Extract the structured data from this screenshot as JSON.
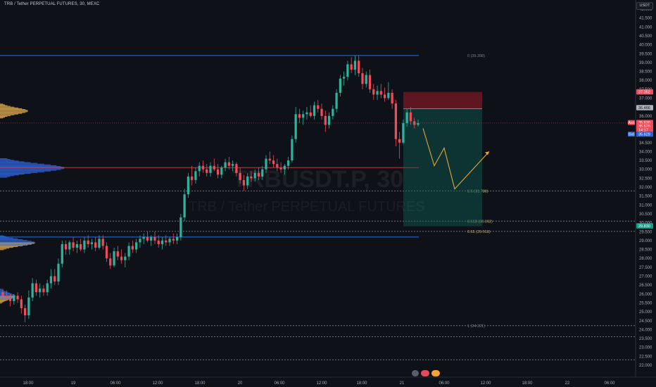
{
  "header": {
    "symbol_title": "TRB / Tether PERPETUAL FUTURES, 30, MEXC",
    "currency": "USDT"
  },
  "watermark": {
    "symbol": "TRBUSDT.P, 30",
    "name": "TRB / Tether PERPETUAL FUTURES"
  },
  "colors": {
    "bull": "#2db39c",
    "bear": "#ef4b5b",
    "fib_line": "#2b6fdc",
    "fib_mid_line": "#d8404a",
    "projection": "#e8a536",
    "target_zone": "#0e5d55",
    "stop_zone": "#7a1a26",
    "volume_profile_up": "#d6a54a",
    "volume_profile_down": "#2b63d6"
  },
  "chart_data": {
    "type": "candlestick",
    "title": "TRB / Tether PERPETUAL FUTURES, 30, MEXC",
    "y_axis": {
      "unit": "USDT",
      "range": [
        22.0,
        42.0
      ],
      "ticks": [
        "42.000",
        "41.500",
        "41.000",
        "40.500",
        "40.000",
        "39.500",
        "39.000",
        "38.500",
        "38.000",
        "37.500",
        "37.000",
        "36.500",
        "36.000",
        "35.500",
        "35.000",
        "34.500",
        "34.000",
        "33.500",
        "33.000",
        "32.500",
        "32.000",
        "31.500",
        "31.000",
        "30.500",
        "30.000",
        "29.500",
        "29.000",
        "28.500",
        "28.000",
        "27.500",
        "27.000",
        "26.500",
        "26.000",
        "25.500",
        "25.000",
        "24.500",
        "24.000",
        "23.500",
        "23.000",
        "22.500",
        "22.000"
      ]
    },
    "x_axis": {
      "ticks": [
        "18:00",
        "19",
        "06:00",
        "12:00",
        "18:00",
        "20",
        "06:00",
        "12:00",
        "18:00",
        "21",
        "06:00",
        "12:00",
        "18:00",
        "22",
        "06:00"
      ]
    },
    "candles": [
      {
        "o": 26.1,
        "h": 26.3,
        "l": 25.7,
        "c": 25.9
      },
      {
        "o": 25.9,
        "h": 26.2,
        "l": 25.6,
        "c": 25.8
      },
      {
        "o": 25.8,
        "h": 26.0,
        "l": 25.3,
        "c": 25.6
      },
      {
        "o": 25.6,
        "h": 26.0,
        "l": 25.4,
        "c": 25.9
      },
      {
        "o": 25.9,
        "h": 26.1,
        "l": 25.5,
        "c": 25.7
      },
      {
        "o": 25.7,
        "h": 25.9,
        "l": 24.9,
        "c": 25.2
      },
      {
        "o": 25.2,
        "h": 25.4,
        "l": 24.4,
        "c": 24.8
      },
      {
        "o": 24.8,
        "h": 26.2,
        "l": 24.6,
        "c": 25.8
      },
      {
        "o": 25.8,
        "h": 26.9,
        "l": 25.6,
        "c": 26.6
      },
      {
        "o": 26.6,
        "h": 26.8,
        "l": 25.9,
        "c": 26.1
      },
      {
        "o": 26.1,
        "h": 26.6,
        "l": 25.8,
        "c": 26.3
      },
      {
        "o": 26.3,
        "h": 26.5,
        "l": 25.9,
        "c": 26.1
      },
      {
        "o": 26.1,
        "h": 26.8,
        "l": 25.9,
        "c": 26.6
      },
      {
        "o": 26.6,
        "h": 27.4,
        "l": 26.3,
        "c": 27.0
      },
      {
        "o": 27.0,
        "h": 27.4,
        "l": 26.5,
        "c": 26.7
      },
      {
        "o": 26.7,
        "h": 28.0,
        "l": 26.5,
        "c": 27.7
      },
      {
        "o": 27.7,
        "h": 29.0,
        "l": 27.5,
        "c": 28.8
      },
      {
        "o": 28.8,
        "h": 29.0,
        "l": 28.2,
        "c": 28.5
      },
      {
        "o": 28.5,
        "h": 29.0,
        "l": 28.2,
        "c": 28.9
      },
      {
        "o": 28.9,
        "h": 29.2,
        "l": 28.4,
        "c": 28.6
      },
      {
        "o": 28.6,
        "h": 29.0,
        "l": 28.3,
        "c": 28.8
      },
      {
        "o": 28.8,
        "h": 29.1,
        "l": 28.4,
        "c": 28.5
      },
      {
        "o": 28.5,
        "h": 29.2,
        "l": 28.3,
        "c": 29.0
      },
      {
        "o": 29.0,
        "h": 29.3,
        "l": 28.6,
        "c": 28.8
      },
      {
        "o": 28.8,
        "h": 29.1,
        "l": 28.5,
        "c": 28.9
      },
      {
        "o": 28.9,
        "h": 29.2,
        "l": 28.4,
        "c": 28.6
      },
      {
        "o": 28.6,
        "h": 29.3,
        "l": 28.5,
        "c": 29.1
      },
      {
        "o": 29.1,
        "h": 29.3,
        "l": 28.5,
        "c": 28.7
      },
      {
        "o": 28.7,
        "h": 28.9,
        "l": 27.8,
        "c": 28.0
      },
      {
        "o": 28.0,
        "h": 28.3,
        "l": 27.4,
        "c": 27.6
      },
      {
        "o": 27.6,
        "h": 28.6,
        "l": 27.5,
        "c": 28.4
      },
      {
        "o": 28.4,
        "h": 28.7,
        "l": 27.9,
        "c": 28.1
      },
      {
        "o": 28.1,
        "h": 28.5,
        "l": 27.7,
        "c": 27.9
      },
      {
        "o": 27.9,
        "h": 28.3,
        "l": 27.5,
        "c": 28.1
      },
      {
        "o": 28.1,
        "h": 28.9,
        "l": 27.9,
        "c": 28.7
      },
      {
        "o": 28.7,
        "h": 29.0,
        "l": 28.3,
        "c": 28.5
      },
      {
        "o": 28.5,
        "h": 29.1,
        "l": 28.3,
        "c": 28.9
      },
      {
        "o": 28.9,
        "h": 29.3,
        "l": 28.6,
        "c": 29.1
      },
      {
        "o": 29.1,
        "h": 29.4,
        "l": 28.8,
        "c": 29.2
      },
      {
        "o": 29.2,
        "h": 29.5,
        "l": 28.9,
        "c": 29.0
      },
      {
        "o": 29.0,
        "h": 29.3,
        "l": 28.7,
        "c": 29.2
      },
      {
        "o": 29.2,
        "h": 29.5,
        "l": 28.8,
        "c": 29.0
      },
      {
        "o": 29.0,
        "h": 29.3,
        "l": 28.6,
        "c": 28.8
      },
      {
        "o": 28.8,
        "h": 29.2,
        "l": 28.5,
        "c": 29.0
      },
      {
        "o": 29.0,
        "h": 29.3,
        "l": 28.7,
        "c": 28.9
      },
      {
        "o": 28.9,
        "h": 29.2,
        "l": 28.7,
        "c": 29.1
      },
      {
        "o": 29.1,
        "h": 29.4,
        "l": 28.8,
        "c": 29.0
      },
      {
        "o": 29.0,
        "h": 29.4,
        "l": 28.8,
        "c": 29.2
      },
      {
        "o": 29.2,
        "h": 30.5,
        "l": 29.0,
        "c": 30.3
      },
      {
        "o": 30.3,
        "h": 31.9,
        "l": 30.1,
        "c": 31.6
      },
      {
        "o": 31.6,
        "h": 32.8,
        "l": 31.4,
        "c": 32.6
      },
      {
        "o": 32.6,
        "h": 33.2,
        "l": 32.1,
        "c": 32.4
      },
      {
        "o": 32.4,
        "h": 33.1,
        "l": 32.2,
        "c": 32.9
      },
      {
        "o": 32.9,
        "h": 33.4,
        "l": 32.6,
        "c": 33.2
      },
      {
        "o": 33.2,
        "h": 33.5,
        "l": 32.8,
        "c": 33.0
      },
      {
        "o": 33.0,
        "h": 33.3,
        "l": 32.6,
        "c": 32.8
      },
      {
        "o": 32.8,
        "h": 33.4,
        "l": 32.6,
        "c": 33.2
      },
      {
        "o": 33.2,
        "h": 33.6,
        "l": 32.9,
        "c": 33.0
      },
      {
        "o": 33.0,
        "h": 33.3,
        "l": 32.5,
        "c": 32.7
      },
      {
        "o": 32.7,
        "h": 33.2,
        "l": 32.5,
        "c": 33.1
      },
      {
        "o": 33.1,
        "h": 33.6,
        "l": 32.9,
        "c": 33.4
      },
      {
        "o": 33.4,
        "h": 33.7,
        "l": 33.0,
        "c": 33.2
      },
      {
        "o": 33.2,
        "h": 33.5,
        "l": 32.9,
        "c": 33.3
      },
      {
        "o": 33.3,
        "h": 33.4,
        "l": 32.6,
        "c": 32.8
      },
      {
        "o": 32.8,
        "h": 33.1,
        "l": 32.2,
        "c": 32.4
      },
      {
        "o": 32.4,
        "h": 32.7,
        "l": 31.8,
        "c": 32.1
      },
      {
        "o": 32.1,
        "h": 32.8,
        "l": 31.9,
        "c": 32.6
      },
      {
        "o": 32.6,
        "h": 32.9,
        "l": 32.3,
        "c": 32.5
      },
      {
        "o": 32.5,
        "h": 33.0,
        "l": 32.3,
        "c": 32.8
      },
      {
        "o": 32.8,
        "h": 33.1,
        "l": 32.4,
        "c": 32.6
      },
      {
        "o": 32.6,
        "h": 33.2,
        "l": 32.4,
        "c": 33.0
      },
      {
        "o": 33.0,
        "h": 33.8,
        "l": 32.8,
        "c": 33.6
      },
      {
        "o": 33.6,
        "h": 34.0,
        "l": 33.3,
        "c": 33.5
      },
      {
        "o": 33.5,
        "h": 33.8,
        "l": 33.1,
        "c": 33.3
      },
      {
        "o": 33.3,
        "h": 33.6,
        "l": 32.9,
        "c": 33.1
      },
      {
        "o": 33.1,
        "h": 33.4,
        "l": 32.8,
        "c": 33.0
      },
      {
        "o": 33.0,
        "h": 33.3,
        "l": 32.7,
        "c": 33.2
      },
      {
        "o": 33.2,
        "h": 33.7,
        "l": 33.0,
        "c": 33.5
      },
      {
        "o": 33.5,
        "h": 34.9,
        "l": 33.4,
        "c": 34.7
      },
      {
        "o": 34.7,
        "h": 36.5,
        "l": 34.5,
        "c": 36.1
      },
      {
        "o": 36.1,
        "h": 36.4,
        "l": 35.6,
        "c": 35.9
      },
      {
        "o": 35.9,
        "h": 36.3,
        "l": 35.5,
        "c": 36.1
      },
      {
        "o": 36.1,
        "h": 36.5,
        "l": 35.8,
        "c": 36.2
      },
      {
        "o": 36.2,
        "h": 36.6,
        "l": 35.9,
        "c": 36.0
      },
      {
        "o": 36.0,
        "h": 36.8,
        "l": 35.8,
        "c": 36.6
      },
      {
        "o": 36.6,
        "h": 36.9,
        "l": 36.2,
        "c": 36.4
      },
      {
        "o": 36.4,
        "h": 36.7,
        "l": 35.8,
        "c": 36.0
      },
      {
        "o": 36.0,
        "h": 36.3,
        "l": 35.1,
        "c": 35.5
      },
      {
        "o": 35.5,
        "h": 36.2,
        "l": 35.3,
        "c": 36.0
      },
      {
        "o": 36.0,
        "h": 36.6,
        "l": 35.8,
        "c": 36.4
      },
      {
        "o": 36.4,
        "h": 37.5,
        "l": 36.2,
        "c": 37.3
      },
      {
        "o": 37.3,
        "h": 38.3,
        "l": 37.1,
        "c": 38.1
      },
      {
        "o": 38.1,
        "h": 38.5,
        "l": 37.7,
        "c": 38.2
      },
      {
        "o": 38.2,
        "h": 39.1,
        "l": 38.0,
        "c": 38.9
      },
      {
        "o": 38.9,
        "h": 39.3,
        "l": 38.4,
        "c": 38.6
      },
      {
        "o": 38.6,
        "h": 39.4,
        "l": 38.3,
        "c": 39.1
      },
      {
        "o": 39.1,
        "h": 39.4,
        "l": 38.2,
        "c": 38.4
      },
      {
        "o": 38.4,
        "h": 38.7,
        "l": 37.5,
        "c": 37.8
      },
      {
        "o": 37.8,
        "h": 38.5,
        "l": 37.6,
        "c": 38.3
      },
      {
        "o": 38.3,
        "h": 38.6,
        "l": 37.3,
        "c": 37.5
      },
      {
        "o": 37.5,
        "h": 37.8,
        "l": 36.9,
        "c": 37.2
      },
      {
        "o": 37.2,
        "h": 37.7,
        "l": 36.9,
        "c": 37.4
      },
      {
        "o": 37.4,
        "h": 37.8,
        "l": 37.0,
        "c": 37.2
      },
      {
        "o": 37.2,
        "h": 37.6,
        "l": 36.8,
        "c": 37.0
      },
      {
        "o": 37.0,
        "h": 37.9,
        "l": 36.9,
        "c": 37.3
      },
      {
        "o": 37.3,
        "h": 37.5,
        "l": 36.4,
        "c": 36.7
      },
      {
        "o": 36.7,
        "h": 36.9,
        "l": 34.3,
        "c": 34.7
      },
      {
        "o": 34.7,
        "h": 35.1,
        "l": 33.6,
        "c": 34.5
      },
      {
        "o": 34.5,
        "h": 35.8,
        "l": 34.4,
        "c": 35.6
      },
      {
        "o": 35.6,
        "h": 36.4,
        "l": 35.4,
        "c": 36.2
      },
      {
        "o": 36.2,
        "h": 36.5,
        "l": 35.5,
        "c": 35.7
      },
      {
        "o": 35.7,
        "h": 35.9,
        "l": 35.3,
        "c": 35.5
      },
      {
        "o": 35.5,
        "h": 35.8,
        "l": 35.4,
        "c": 35.6
      }
    ],
    "fib_levels": [
      {
        "label": "0 (39.398)",
        "price": 39.398,
        "style": "solid-blue",
        "dim": true
      },
      {
        "label": "0.5 (31.788)",
        "price": 31.788,
        "style": "dotted",
        "dim": false
      },
      {
        "label": "0.618 (30.092)",
        "price": 30.092,
        "style": "dotted",
        "dim": false
      },
      {
        "label": "0.65 (29.518)",
        "price": 29.518,
        "style": "dotted",
        "dim": false
      },
      {
        "label": "1 (24.221)",
        "price": 24.221,
        "style": "dotted",
        "dim": true
      }
    ],
    "extra_lines": [
      {
        "price": 29.2,
        "style": "solid-blue"
      },
      {
        "price": 33.1,
        "style": "solid-red"
      },
      {
        "price": 23.6,
        "style": "dotted"
      },
      {
        "price": 22.3,
        "style": "dotted"
      }
    ],
    "position_tool": {
      "entry": 36.4,
      "stop": 37.35,
      "target": 29.8,
      "ticker_price": 35.6
    },
    "projection_path": [
      [
        35.3
      ],
      [
        33.2
      ],
      [
        34.2
      ],
      [
        31.9
      ],
      [
        34.0
      ]
    ],
    "price_badges": [
      {
        "text": "37.352",
        "price": 37.352,
        "bg": "#ef4b5b",
        "fg": "#ffffff"
      },
      {
        "text": "36.466",
        "price": 36.466,
        "bg": "#b0b3bb",
        "fg": "#111111"
      },
      {
        "text": "35.630",
        "price": 35.63,
        "bg": "#ef4b5b",
        "fg": "#ffffff"
      },
      {
        "text": "35.629",
        "price": 35.43,
        "bg": "#ef4b5b",
        "fg": "#ffffff"
      },
      {
        "text": "14:17",
        "price": 35.23,
        "bg": "#ef4b5b",
        "fg": "#ffffff"
      },
      {
        "text": "35.629",
        "price": 34.98,
        "bg": "#2b63d6",
        "fg": "#ffffff"
      },
      {
        "text": "29.830",
        "price": 29.83,
        "bg": "#1a9f86",
        "fg": "#ffffff"
      }
    ],
    "side_tags": [
      {
        "text": "Ask",
        "price": 35.63,
        "bg": "#ef4b5b"
      },
      {
        "text": "Bid",
        "price": 34.98,
        "bg": "#2b63d6"
      }
    ],
    "volume_profile": [
      {
        "price": 36.3,
        "width": 40,
        "color": "up"
      },
      {
        "price": 33.1,
        "width": 92,
        "color": "down"
      },
      {
        "price": 28.9,
        "width": 50,
        "color": "mixed"
      },
      {
        "price": 25.9,
        "width": 22,
        "color": "mixed"
      }
    ]
  }
}
